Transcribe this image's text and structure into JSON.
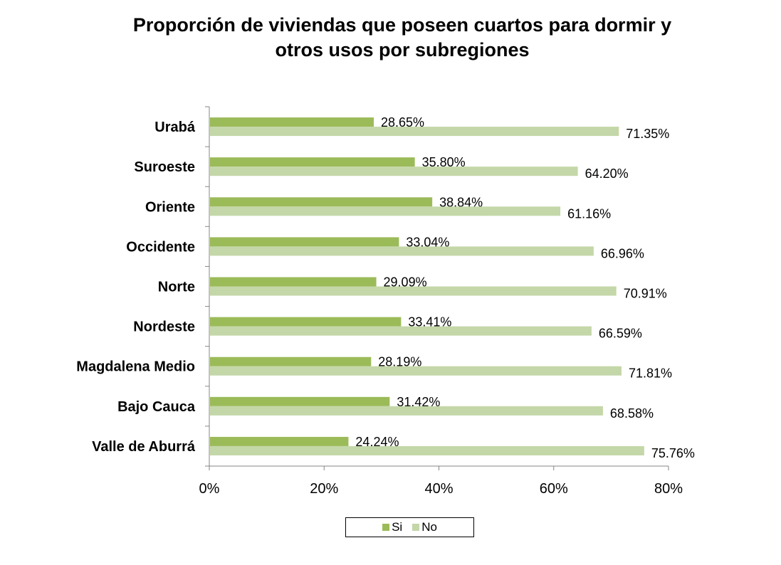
{
  "chart_data": {
    "type": "bar",
    "orientation": "horizontal",
    "title_lines": [
      "Proporción de viviendas que poseen cuartos para dormir  y",
      "otros usos por subregiones"
    ],
    "categories": [
      "Urabá",
      "Suroeste",
      "Oriente",
      "Occidente",
      "Norte",
      "Nordeste",
      "Magdalena Medio",
      "Bajo Cauca",
      "Valle de Aburrá"
    ],
    "series": [
      {
        "name": "Si",
        "color": "#9bbb59",
        "values": [
          28.65,
          35.8,
          38.84,
          33.04,
          29.09,
          33.41,
          28.19,
          31.42,
          24.24
        ],
        "labels": [
          "28.65%",
          "35.80%",
          "38.84%",
          "33.04%",
          "29.09%",
          "33.41%",
          "28.19%",
          "31.42%",
          "24.24%"
        ]
      },
      {
        "name": "No",
        "color": "#c4d7a8",
        "values": [
          71.35,
          64.2,
          61.16,
          66.96,
          70.91,
          66.59,
          71.81,
          68.58,
          75.76
        ],
        "labels": [
          "71.35%",
          "64.20%",
          "61.16%",
          "66.96%",
          "70.91%",
          "66.59%",
          "71.81%",
          "68.58%",
          "75.76%"
        ]
      }
    ],
    "xlim": [
      0,
      80
    ],
    "xticks": [
      0,
      20,
      40,
      60,
      80
    ],
    "xtick_labels": [
      "0%",
      "20%",
      "40%",
      "60%",
      "80%"
    ],
    "grid": false,
    "legend_position": "bottom"
  }
}
